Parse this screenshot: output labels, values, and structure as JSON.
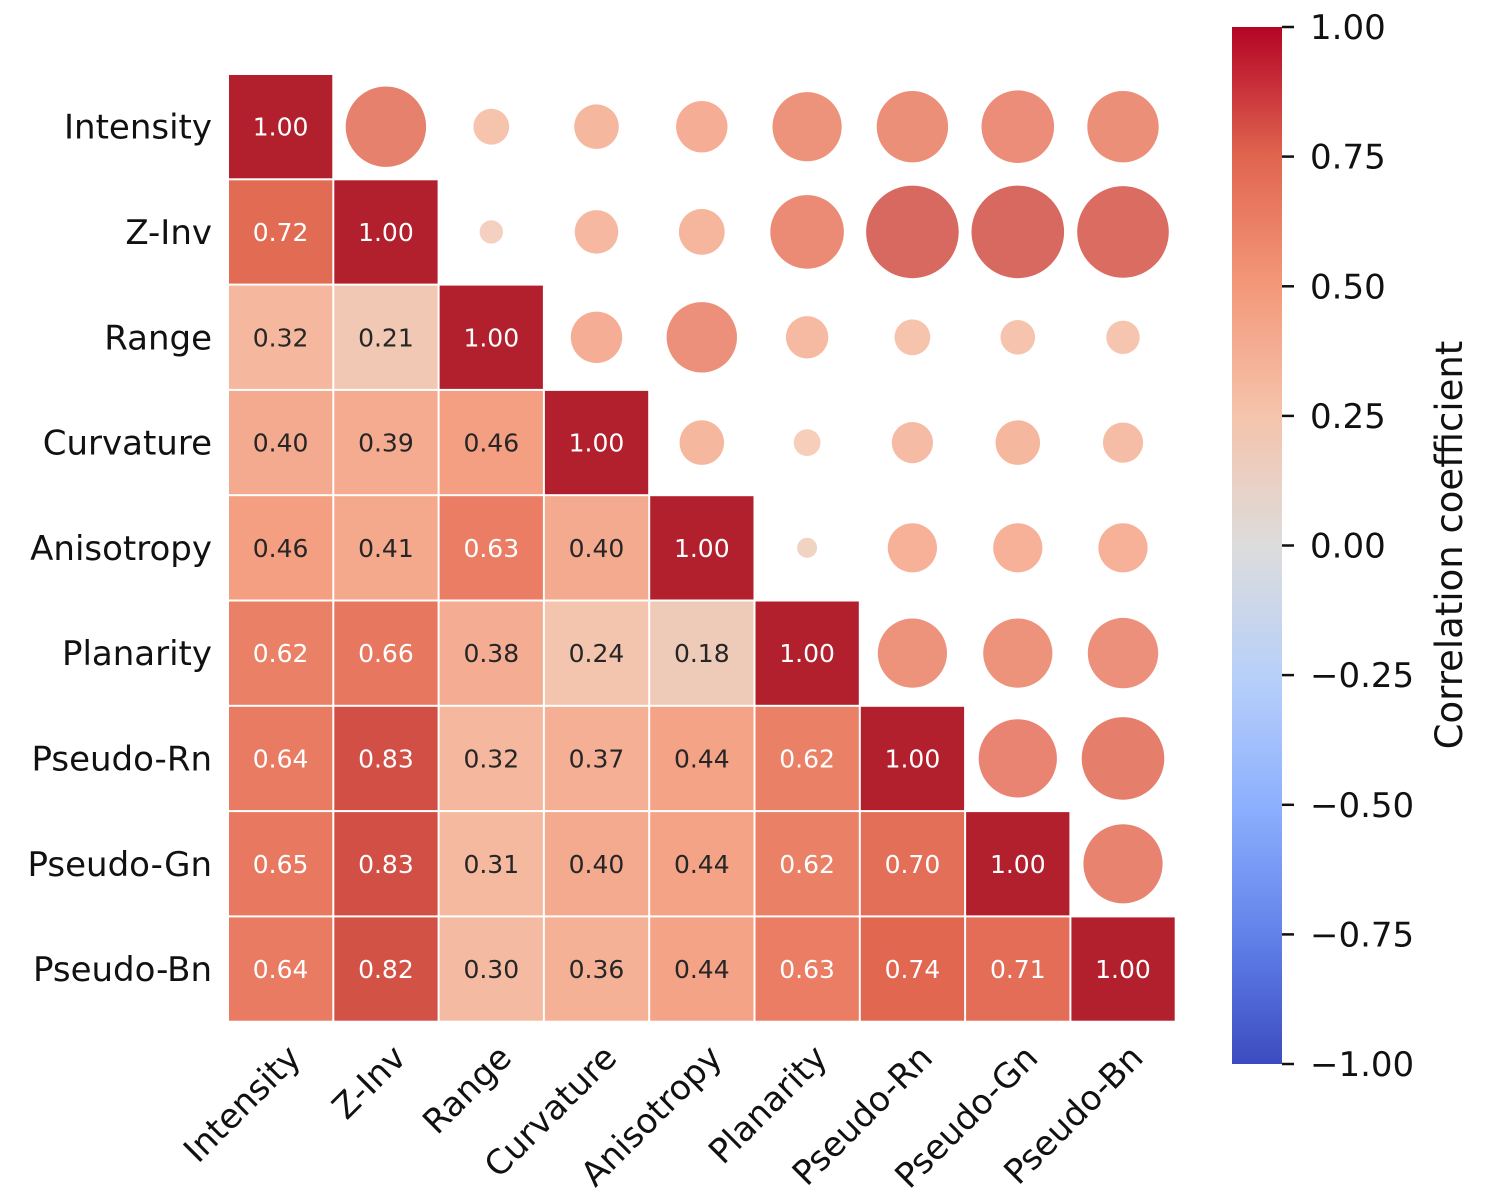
{
  "chart_data": {
    "type": "heatmap",
    "title": "",
    "variables": [
      "Intensity",
      "Z-Inv",
      "Range",
      "Curvature",
      "Anisotropy",
      "Planarity",
      "Pseudo-Rn",
      "Pseudo-Gn",
      "Pseudo-Bn"
    ],
    "matrix": [
      [
        1.0,
        0.72,
        0.32,
        0.4,
        0.46,
        0.62,
        0.64,
        0.65,
        0.64
      ],
      [
        0.72,
        1.0,
        0.21,
        0.39,
        0.41,
        0.66,
        0.83,
        0.83,
        0.82
      ],
      [
        0.32,
        0.21,
        1.0,
        0.46,
        0.63,
        0.38,
        0.32,
        0.31,
        0.3
      ],
      [
        0.4,
        0.39,
        0.46,
        1.0,
        0.4,
        0.24,
        0.37,
        0.4,
        0.36
      ],
      [
        0.46,
        0.41,
        0.63,
        0.4,
        1.0,
        0.18,
        0.44,
        0.44,
        0.44
      ],
      [
        0.62,
        0.66,
        0.38,
        0.24,
        0.18,
        1.0,
        0.62,
        0.62,
        0.63
      ],
      [
        0.64,
        0.83,
        0.32,
        0.37,
        0.44,
        0.62,
        1.0,
        0.7,
        0.74
      ],
      [
        0.65,
        0.83,
        0.31,
        0.4,
        0.44,
        0.62,
        0.7,
        1.0,
        0.71
      ],
      [
        0.64,
        0.82,
        0.3,
        0.36,
        0.44,
        0.63,
        0.74,
        0.71,
        1.0
      ]
    ],
    "lower_triangle": "annotated squares",
    "upper_triangle": "circles sized by |r|",
    "value_format": "0.00",
    "colormap": "coolwarm",
    "vmin": -1.0,
    "vmax": 1.0,
    "colorbar": {
      "label": "Correlation coefficient",
      "ticks": [
        1.0,
        0.75,
        0.5,
        0.25,
        0.0,
        -0.25,
        -0.5,
        -0.75,
        -1.0
      ],
      "tick_labels": [
        "1.00",
        "0.75",
        "0.50",
        "0.25",
        "0.00",
        "−0.25",
        "−0.50",
        "−0.75",
        "−1.00"
      ],
      "placement": "right"
    },
    "xlabel": "",
    "ylabel": "",
    "x_tick_rotation_deg": 45
  }
}
